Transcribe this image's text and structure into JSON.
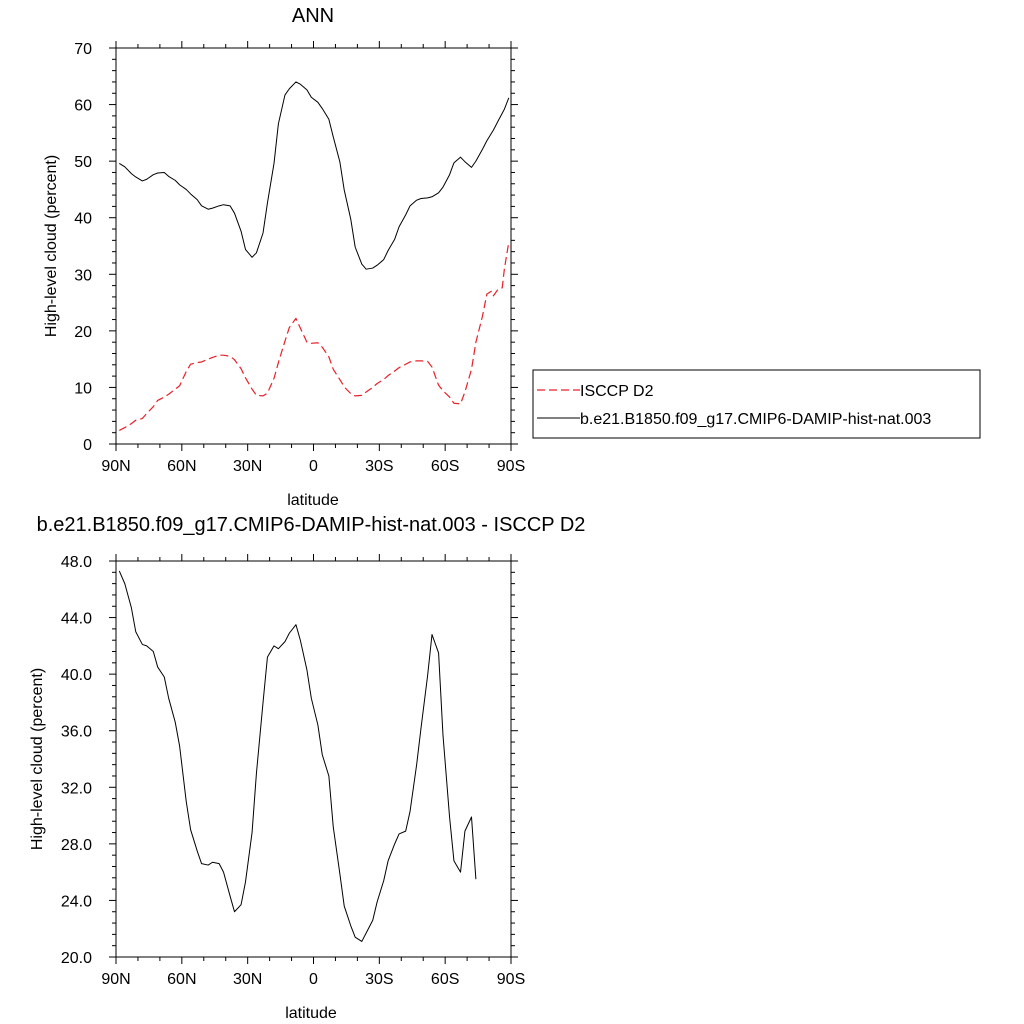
{
  "chart_data": [
    {
      "type": "line",
      "title": "ANN",
      "xlabel": "latitude",
      "ylabel": "High-level cloud (percent)",
      "xlim": [
        -90,
        90
      ],
      "ylim": [
        0,
        70
      ],
      "x_ticks": [
        -90,
        -60,
        -30,
        0,
        30,
        60,
        90
      ],
      "x_tick_labels": [
        "90N",
        "60N",
        "30N",
        "0",
        "30S",
        "60S",
        "90S"
      ],
      "y_ticks": [
        0,
        10,
        20,
        30,
        40,
        50,
        60,
        70
      ],
      "y_tick_labels": [
        "0",
        "10",
        "20",
        "30",
        "40",
        "50",
        "60",
        "70"
      ],
      "legend_position": "right",
      "series": [
        {
          "name": "ISCCP D2",
          "color": "#e8202a",
          "dash": "dashed",
          "points": [
            [
              -88.5,
              2.4
            ],
            [
              -86,
              2.9
            ],
            [
              -83,
              3.6
            ],
            [
              -81,
              4.2
            ],
            [
              -78,
              4.5
            ],
            [
              -76,
              5.4
            ],
            [
              -73,
              6.6
            ],
            [
              -71,
              7.7
            ],
            [
              -68,
              8.3
            ],
            [
              -66,
              8.8
            ],
            [
              -63,
              9.7
            ],
            [
              -61,
              10.3
            ],
            [
              -58,
              12.8
            ],
            [
              -56,
              14.1
            ],
            [
              -53,
              14.4
            ],
            [
              -51,
              14.5
            ],
            [
              -48,
              15.0
            ],
            [
              -46,
              15.3
            ],
            [
              -43,
              15.7
            ],
            [
              -41,
              15.7
            ],
            [
              -38,
              15.5
            ],
            [
              -36,
              14.9
            ],
            [
              -33,
              13.3
            ],
            [
              -31,
              11.7
            ],
            [
              -28,
              9.7
            ],
            [
              -26,
              8.6
            ],
            [
              -23,
              8.5
            ],
            [
              -21,
              9.0
            ],
            [
              -18,
              11.6
            ],
            [
              -16,
              14.4
            ],
            [
              -13,
              18.2
            ],
            [
              -11,
              20.6
            ],
            [
              -8,
              22.2
            ],
            [
              -6,
              20.5
            ],
            [
              -3,
              18.0
            ],
            [
              -1,
              17.8
            ],
            [
              2,
              17.9
            ],
            [
              4,
              17.1
            ],
            [
              7,
              15.4
            ],
            [
              9,
              13.2
            ],
            [
              12,
              11.4
            ],
            [
              14,
              10.1
            ],
            [
              17,
              8.9
            ],
            [
              19,
              8.5
            ],
            [
              22,
              8.6
            ],
            [
              24,
              9.2
            ],
            [
              27,
              10.0
            ],
            [
              29,
              10.7
            ],
            [
              32,
              11.4
            ],
            [
              34,
              12.1
            ],
            [
              37,
              12.9
            ],
            [
              39,
              13.5
            ],
            [
              42,
              14.1
            ],
            [
              44,
              14.5
            ],
            [
              47,
              14.7
            ],
            [
              49,
              14.7
            ],
            [
              52,
              14.6
            ],
            [
              54,
              13.6
            ],
            [
              57,
              10.4
            ],
            [
              59,
              9.4
            ],
            [
              62,
              8.3
            ],
            [
              64,
              7.2
            ],
            [
              67,
              7.1
            ],
            [
              69,
              9.2
            ],
            [
              72,
              13.2
            ],
            [
              74,
              18.0
            ],
            [
              77,
              22.6
            ],
            [
              79,
              26.5
            ],
            [
              81,
              27.0
            ],
            [
              82,
              26.2
            ],
            [
              84,
              27.3
            ],
            [
              86,
              27.6
            ],
            [
              87,
              31.0
            ],
            [
              89,
              35.7
            ]
          ]
        },
        {
          "name": "b.e21.B1850.f09_g17.CMIP6-DAMIP-hist-nat.003",
          "color": "#000000",
          "dash": "solid",
          "points": [
            [
              -88.5,
              49.6
            ],
            [
              -86,
              49.0
            ],
            [
              -83,
              47.8
            ],
            [
              -81,
              47.2
            ],
            [
              -78,
              46.5
            ],
            [
              -76,
              46.8
            ],
            [
              -73,
              47.6
            ],
            [
              -71,
              47.9
            ],
            [
              -68,
              48.0
            ],
            [
              -66,
              47.3
            ],
            [
              -63,
              46.6
            ],
            [
              -61,
              45.8
            ],
            [
              -58,
              45.0
            ],
            [
              -56,
              44.2
            ],
            [
              -53,
              43.2
            ],
            [
              -51,
              42.1
            ],
            [
              -48,
              41.5
            ],
            [
              -46,
              41.7
            ],
            [
              -43,
              42.1
            ],
            [
              -41,
              42.3
            ],
            [
              -38,
              42.1
            ],
            [
              -36,
              40.8
            ],
            [
              -33,
              37.6
            ],
            [
              -31,
              34.4
            ],
            [
              -28,
              33.0
            ],
            [
              -26,
              33.8
            ],
            [
              -23,
              37.3
            ],
            [
              -21,
              42.6
            ],
            [
              -18,
              49.6
            ],
            [
              -16,
              56.6
            ],
            [
              -13,
              61.7
            ],
            [
              -11,
              62.8
            ],
            [
              -8,
              64.0
            ],
            [
              -6,
              63.6
            ],
            [
              -3,
              62.6
            ],
            [
              -1,
              61.3
            ],
            [
              2,
              60.4
            ],
            [
              4,
              59.3
            ],
            [
              7,
              57.4
            ],
            [
              9,
              54.3
            ],
            [
              12,
              49.9
            ],
            [
              14,
              44.9
            ],
            [
              17,
              39.7
            ],
            [
              19,
              34.8
            ],
            [
              22,
              31.8
            ],
            [
              24,
              30.9
            ],
            [
              27,
              31.1
            ],
            [
              29,
              31.6
            ],
            [
              32,
              32.6
            ],
            [
              34,
              34.2
            ],
            [
              37,
              36.2
            ],
            [
              39,
              38.4
            ],
            [
              42,
              40.5
            ],
            [
              44,
              42.1
            ],
            [
              47,
              43.1
            ],
            [
              49,
              43.4
            ],
            [
              52,
              43.5
            ],
            [
              54,
              43.7
            ],
            [
              57,
              44.4
            ],
            [
              59,
              45.4
            ],
            [
              62,
              47.6
            ],
            [
              64,
              49.7
            ],
            [
              67,
              50.7
            ],
            [
              69,
              49.9
            ],
            [
              72,
              48.9
            ],
            [
              74,
              50.0
            ],
            [
              77,
              52.1
            ],
            [
              79,
              53.6
            ],
            [
              82,
              55.5
            ],
            [
              84,
              57.0
            ],
            [
              87,
              59.2
            ],
            [
              89,
              61.2
            ]
          ]
        }
      ]
    },
    {
      "type": "line",
      "title": "b.e21.B1850.f09_g17.CMIP6-DAMIP-hist-nat.003 - ISCCP D2",
      "xlabel": "latitude",
      "ylabel": "High-level cloud (percent)",
      "xlim": [
        -90,
        90
      ],
      "ylim": [
        20,
        48
      ],
      "x_ticks": [
        -90,
        -60,
        -30,
        0,
        30,
        60,
        90
      ],
      "x_tick_labels": [
        "90N",
        "60N",
        "30N",
        "0",
        "30S",
        "60S",
        "90S"
      ],
      "y_ticks": [
        20,
        24,
        28,
        32,
        36,
        40,
        44,
        48
      ],
      "y_tick_labels": [
        "20.0",
        "24.0",
        "28.0",
        "32.0",
        "36.0",
        "40.0",
        "44.0",
        "48.0"
      ],
      "series": [
        {
          "color": "#000000",
          "dash": "solid",
          "points": [
            [
              -88.5,
              47.3
            ],
            [
              -86,
              46.4
            ],
            [
              -83,
              44.7
            ],
            [
              -81,
              43.0
            ],
            [
              -78,
              42.1
            ],
            [
              -76,
              42.0
            ],
            [
              -73,
              41.6
            ],
            [
              -71,
              40.5
            ],
            [
              -68,
              39.8
            ],
            [
              -66,
              38.3
            ],
            [
              -63,
              36.6
            ],
            [
              -61,
              34.9
            ],
            [
              -58,
              31.0
            ],
            [
              -56,
              29.0
            ],
            [
              -53,
              27.5
            ],
            [
              -51,
              26.6
            ],
            [
              -48,
              26.5
            ],
            [
              -46,
              26.7
            ],
            [
              -43,
              26.6
            ],
            [
              -41,
              26.0
            ],
            [
              -38,
              24.3
            ],
            [
              -36,
              23.2
            ],
            [
              -33,
              23.7
            ],
            [
              -31,
              25.3
            ],
            [
              -28,
              28.8
            ],
            [
              -26,
              33.0
            ],
            [
              -23,
              38.0
            ],
            [
              -21,
              41.2
            ],
            [
              -18,
              42.0
            ],
            [
              -16,
              41.8
            ],
            [
              -13,
              42.3
            ],
            [
              -11,
              42.9
            ],
            [
              -8,
              43.5
            ],
            [
              -6,
              42.4
            ],
            [
              -3,
              40.3
            ],
            [
              -1,
              38.3
            ],
            [
              2,
              36.4
            ],
            [
              4,
              34.3
            ],
            [
              7,
              32.8
            ],
            [
              9,
              29.2
            ],
            [
              12,
              25.9
            ],
            [
              14,
              23.6
            ],
            [
              17,
              22.2
            ],
            [
              19,
              21.4
            ],
            [
              22,
              21.1
            ],
            [
              24,
              21.7
            ],
            [
              27,
              22.6
            ],
            [
              29,
              23.9
            ],
            [
              32,
              25.4
            ],
            [
              34,
              26.8
            ],
            [
              37,
              28.0
            ],
            [
              39,
              28.7
            ],
            [
              42,
              28.9
            ],
            [
              44,
              30.3
            ],
            [
              47,
              33.6
            ],
            [
              49,
              36.2
            ],
            [
              52,
              39.9
            ],
            [
              54,
              42.8
            ],
            [
              57,
              41.5
            ],
            [
              59,
              35.7
            ],
            [
              62,
              29.9
            ],
            [
              64,
              26.8
            ],
            [
              67,
              26.0
            ],
            [
              69,
              28.9
            ],
            [
              72,
              29.9
            ],
            [
              74,
              25.5
            ]
          ]
        }
      ]
    }
  ]
}
